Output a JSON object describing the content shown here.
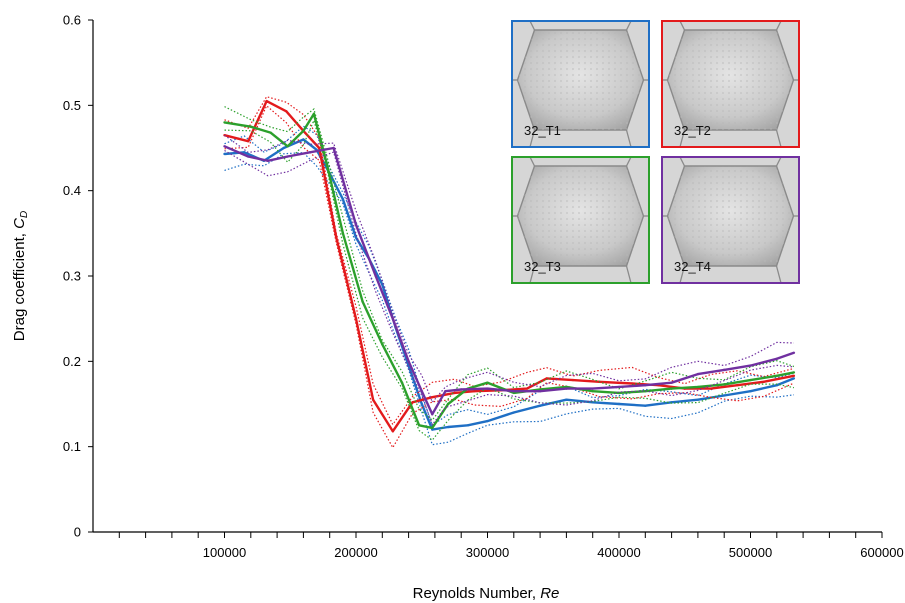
{
  "chart_data": {
    "type": "line",
    "xlabel": "Reynolds Number,",
    "xlabel_italic": "Re",
    "ylabel": "Drag coefficient,",
    "ylabel_italic": "C",
    "ylabel_subscript": "D",
    "xlim": [
      0,
      600000
    ],
    "ylim": [
      0,
      0.6
    ],
    "x_ticks": [
      100000,
      200000,
      300000,
      400000,
      500000,
      600000
    ],
    "x_tick_labels": [
      "100000",
      "200000",
      "300000",
      "400000",
      "500000",
      "600000"
    ],
    "y_ticks": [
      0,
      0.1,
      0.2,
      0.3,
      0.4,
      0.5,
      0.6
    ],
    "y_tick_labels": [
      "0",
      "0.1",
      "0.2",
      "0.3",
      "0.4",
      "0.5",
      "0.6"
    ],
    "grid": false,
    "legend": "image panels top-right",
    "series": [
      {
        "name": "32_T1",
        "color": "#1f6fc5",
        "x": [
          100000,
          115000,
          130000,
          145000,
          160000,
          170000,
          180000,
          190000,
          200000,
          210000,
          220000,
          230000,
          240000,
          250000,
          258000,
          270000,
          285000,
          300000,
          320000,
          340000,
          360000,
          380000,
          400000,
          420000,
          440000,
          460000,
          480000,
          500000,
          520000,
          533000
        ],
        "y": [
          0.443,
          0.445,
          0.435,
          0.45,
          0.46,
          0.448,
          0.42,
          0.39,
          0.345,
          0.32,
          0.29,
          0.24,
          0.195,
          0.15,
          0.12,
          0.123,
          0.125,
          0.13,
          0.14,
          0.148,
          0.155,
          0.152,
          0.15,
          0.148,
          0.152,
          0.155,
          0.16,
          0.165,
          0.172,
          0.18
        ]
      },
      {
        "name": "32_T2",
        "color": "#e31a1c",
        "x": [
          100000,
          118000,
          132000,
          147000,
          160000,
          172000,
          185000,
          200000,
          213000,
          228000,
          243000,
          258000,
          275000,
          290000,
          310000,
          330000,
          345000,
          365000,
          385000,
          410000,
          430000,
          450000,
          470000,
          490000,
          510000,
          533000
        ],
        "y": [
          0.465,
          0.458,
          0.505,
          0.493,
          0.47,
          0.45,
          0.345,
          0.25,
          0.155,
          0.118,
          0.152,
          0.158,
          0.163,
          0.165,
          0.166,
          0.168,
          0.18,
          0.178,
          0.176,
          0.174,
          0.172,
          0.168,
          0.168,
          0.172,
          0.176,
          0.183
        ]
      },
      {
        "name": "32_T3",
        "color": "#2ca02c",
        "x": [
          100000,
          120000,
          135000,
          148000,
          160000,
          168000,
          178000,
          190000,
          205000,
          220000,
          235000,
          248000,
          258000,
          270000,
          285000,
          300000,
          320000,
          340000,
          360000,
          380000,
          400000,
          420000,
          440000,
          460000,
          480000,
          500000,
          520000,
          533000
        ],
        "y": [
          0.48,
          0.475,
          0.468,
          0.452,
          0.47,
          0.49,
          0.43,
          0.35,
          0.27,
          0.22,
          0.175,
          0.125,
          0.122,
          0.15,
          0.168,
          0.175,
          0.163,
          0.167,
          0.17,
          0.165,
          0.163,
          0.165,
          0.168,
          0.17,
          0.173,
          0.178,
          0.183,
          0.187
        ]
      },
      {
        "name": "32_T4",
        "color": "#7030a0",
        "x": [
          100000,
          118000,
          133000,
          148000,
          165000,
          183000,
          200000,
          215000,
          228000,
          240000,
          250000,
          258000,
          268000,
          280000,
          300000,
          320000,
          340000,
          360000,
          380000,
          400000,
          420000,
          440000,
          460000,
          480000,
          500000,
          520000,
          533000
        ],
        "y": [
          0.452,
          0.44,
          0.435,
          0.44,
          0.445,
          0.45,
          0.36,
          0.3,
          0.25,
          0.2,
          0.165,
          0.138,
          0.165,
          0.167,
          0.168,
          0.165,
          0.165,
          0.168,
          0.168,
          0.17,
          0.172,
          0.175,
          0.185,
          0.19,
          0.195,
          0.203,
          0.21
        ]
      }
    ],
    "panels": [
      {
        "label": "32_T1",
        "color": "#1f6fc5"
      },
      {
        "label": "32_T2",
        "color": "#e31a1c"
      },
      {
        "label": "32_T3",
        "color": "#2ca02c"
      },
      {
        "label": "32_T4",
        "color": "#7030a0"
      }
    ]
  }
}
